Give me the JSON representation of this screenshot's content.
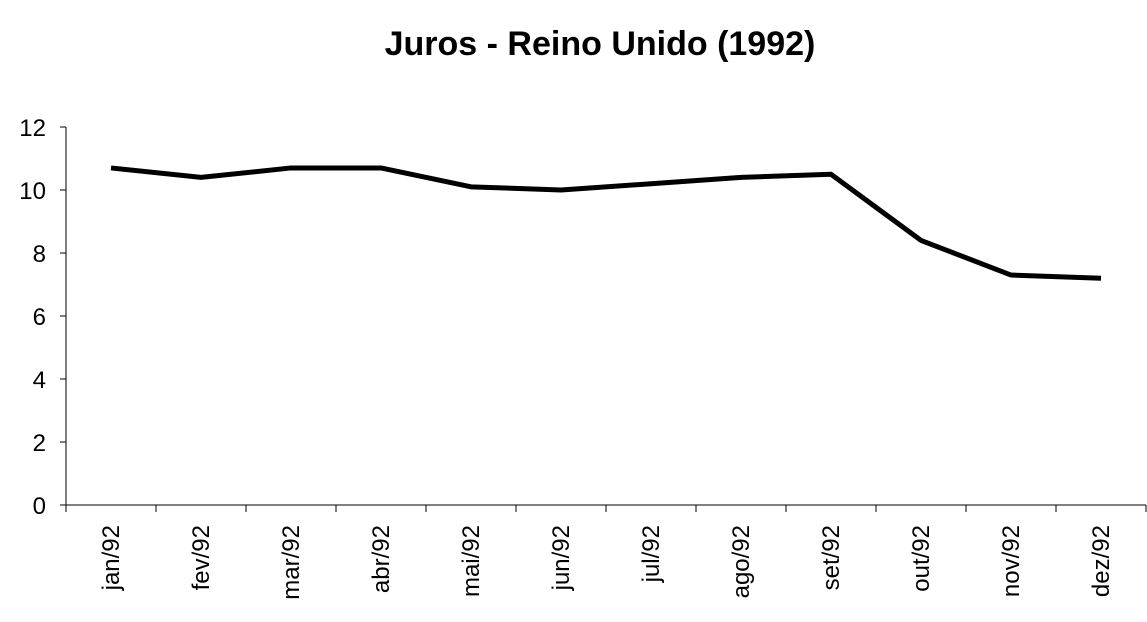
{
  "chart_data": {
    "type": "line",
    "title": "Juros - Reino Unido (1992)",
    "categories": [
      "jan/92",
      "fev/92",
      "mar/92",
      "abr/92",
      "mai/92",
      "jun/92",
      "jul/92",
      "ago/92",
      "set/92",
      "out/92",
      "nov/92",
      "dez/92"
    ],
    "values": [
      10.7,
      10.4,
      10.7,
      10.7,
      10.1,
      10.0,
      10.2,
      10.4,
      10.5,
      8.4,
      7.3,
      7.2
    ],
    "color": "#000000",
    "ylim": [
      0,
      12
    ],
    "yticks": [
      0,
      2,
      4,
      6,
      8,
      10,
      12
    ],
    "grid": false
  }
}
